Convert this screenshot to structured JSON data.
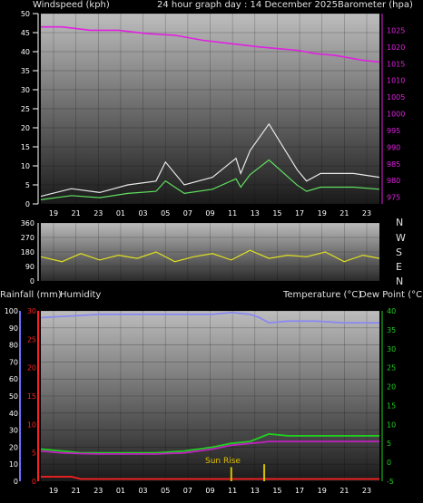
{
  "header": {
    "wind_label": "Windspeed (kph)",
    "title": "24 hour graph day : 14 December 2025",
    "baro_label": "Barometer (hpa)"
  },
  "panel2": {
    "directions": [
      "N",
      "W",
      "S",
      "E",
      "N"
    ]
  },
  "panel3": {
    "rain_label": "Rainfall (mm)",
    "humidity_label": "Humidity",
    "temp_label": "Temperature (°C)",
    "dew_label": "Dew Point (°C)"
  },
  "colors": {
    "barometer": "#e020e0",
    "wind_gust": "#e8e8e8",
    "wind_avg": "#60e060",
    "direction": "#e0e020",
    "humidity": "#8a8af0",
    "rain": "#ff2020",
    "temperature": "#20d020",
    "dewpoint": "#c020c0",
    "left_axis1": "#ffffff",
    "baro_axis": "#e020e0",
    "rain_axis": "#ff2020",
    "humidity_axis": "#7070ff",
    "temp_axis": "#20d020"
  },
  "chart_data": [
    {
      "type": "line",
      "title": "24 hour graph day : 14 December 2025",
      "categories": [
        "19",
        "21",
        "23",
        "01",
        "03",
        "05",
        "07",
        "09",
        "11",
        "13",
        "15",
        "17",
        "19",
        "21",
        "23"
      ],
      "y_ticks": [
        "0",
        "5",
        "10",
        "15",
        "20",
        "25",
        "30",
        "35",
        "40",
        "45",
        "50"
      ],
      "y2_ticks": [
        "975",
        "980",
        "985",
        "990",
        "995",
        "1000",
        "1005",
        "1010",
        "1015",
        "1020",
        "1025"
      ],
      "ylim": [
        0,
        50
      ],
      "y2lim": [
        973,
        1030
      ],
      "grid": true,
      "series": [
        {
          "name": "Windspeed (kph)",
          "axis": "left",
          "x": [
            17.5,
            24,
            30,
            36,
            42,
            44,
            48,
            54,
            59,
            60,
            62,
            66,
            72,
            74,
            77,
            84,
            89.5
          ],
          "values": [
            2,
            4,
            3,
            5,
            6,
            11,
            5,
            7,
            12,
            8,
            14,
            21,
            9,
            6,
            8,
            8,
            7
          ]
        },
        {
          "name": "Barometer (hpa)",
          "axis": "right",
          "x": [
            17.5,
            22,
            28,
            34,
            40,
            46,
            52,
            58,
            64,
            68,
            72,
            76,
            80,
            84,
            86,
            89.5
          ],
          "values": [
            1026,
            1026,
            1025,
            1025,
            1024,
            1023.5,
            1022,
            1021,
            1020,
            1019.5,
            1019,
            1018,
            1017.5,
            1016.5,
            1016,
            1015.5
          ]
        }
      ]
    },
    {
      "type": "line",
      "y_ticks": [
        "0",
        "90",
        "180",
        "270",
        "360"
      ],
      "ylim": [
        0,
        360
      ],
      "x": [
        17.5,
        22,
        26,
        30,
        34,
        38,
        42,
        46,
        50,
        54,
        58,
        62,
        66,
        70,
        74,
        78,
        82,
        86,
        89.5
      ],
      "values": [
        150,
        120,
        170,
        130,
        160,
        140,
        180,
        120,
        150,
        170,
        130,
        190,
        140,
        160,
        150,
        180,
        120,
        160,
        140
      ]
    },
    {
      "type": "line",
      "y_ticks": [
        "0",
        "10",
        "20",
        "30",
        "40",
        "50",
        "60",
        "70",
        "80",
        "90",
        "100"
      ],
      "rain_ticks": [
        "0",
        "5",
        "10",
        "15",
        "20",
        "25",
        "30"
      ],
      "temp_ticks": [
        "-5",
        "0",
        "5",
        "10",
        "15",
        "20",
        "25",
        "30",
        "35",
        "40"
      ],
      "ylim": [
        0,
        100
      ],
      "templim": [
        -5,
        40
      ],
      "rainlim": [
        0,
        30
      ],
      "annotation": "Sun Rise",
      "series": [
        {
          "name": "Humidity",
          "axis": "humidity",
          "x": [
            17.5,
            24,
            30,
            36,
            42,
            48,
            54,
            58,
            62,
            64,
            66,
            70,
            76,
            82,
            89.5
          ],
          "values": [
            96,
            97,
            98,
            98,
            98,
            98,
            98,
            99,
            98,
            96,
            93,
            94,
            94,
            93,
            93
          ]
        },
        {
          "name": "Rainfall (mm)",
          "axis": "rain",
          "x": [
            17.5,
            24,
            26,
            89.5
          ],
          "values": [
            0.8,
            0.8,
            0.4,
            0.4
          ]
        },
        {
          "name": "Temperature (°C)",
          "axis": "temp",
          "x": [
            17.5,
            22,
            26,
            30,
            36,
            42,
            48,
            54,
            58,
            62,
            64,
            66,
            70,
            76,
            82,
            89.5
          ],
          "values": [
            3.5,
            3,
            2.5,
            2.5,
            2.5,
            2.5,
            3,
            4,
            5,
            5.5,
            6.5,
            7.5,
            7,
            7,
            7,
            7
          ]
        },
        {
          "name": "Dew Point (°C)",
          "axis": "temp",
          "x": [
            17.5,
            22,
            26,
            30,
            36,
            42,
            48,
            54,
            58,
            62,
            64,
            66,
            70,
            76,
            82,
            89.5
          ],
          "values": [
            3,
            2.5,
            2.3,
            2.2,
            2.2,
            2.2,
            2.5,
            3.5,
            4.5,
            5,
            5.2,
            5.5,
            5.5,
            5.5,
            5.5,
            5.5
          ]
        }
      ],
      "sun_bars": [
        {
          "x": 58,
          "value": 2.5,
          "color": "#d8c000"
        },
        {
          "x": 65,
          "value": 3,
          "color": "#d8c000"
        }
      ]
    }
  ]
}
